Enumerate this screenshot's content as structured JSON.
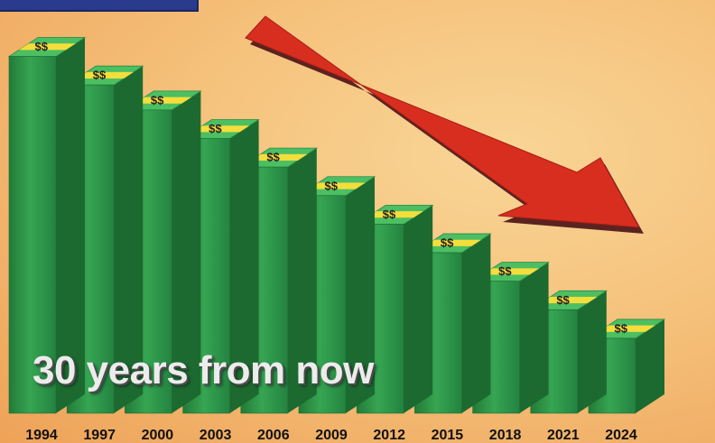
{
  "chart_data": {
    "type": "bar",
    "categories": [
      "1994",
      "1997",
      "2000",
      "2003",
      "2006",
      "2009",
      "2012",
      "2015",
      "2018",
      "2021",
      "2024"
    ],
    "values": [
      100,
      92,
      85,
      77,
      69,
      61,
      53,
      45,
      37,
      29,
      21
    ],
    "title": "",
    "xlabel": "",
    "ylabel": "",
    "ylim": [
      0,
      110
    ],
    "grid": false,
    "annotations": [
      "30 years from now"
    ],
    "bar_label_symbol": "$$",
    "trend": "downward",
    "colors": {
      "bar": "#2f9a4a",
      "bar_top": "#4cbf62",
      "bar_side": "#1c6a30",
      "label_band": "#f5dd3c",
      "arrow": "#d82e20",
      "arrow_shadow": "#5a2320",
      "header": "#2a3a8c"
    }
  }
}
